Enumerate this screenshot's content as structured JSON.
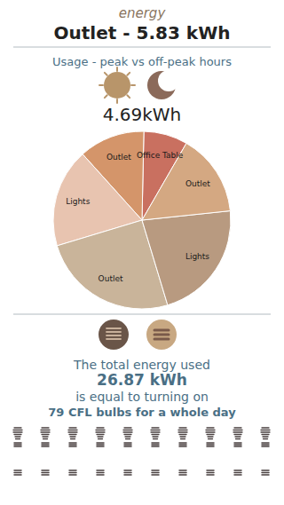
{
  "chart_data": {
    "type": "pie",
    "title": "Outlet - 5.83 kWh",
    "annotations": [
      "energy",
      "Usage - peak vs off-peak hours",
      "4.69kWh",
      "The total energy used",
      "26.87 kWh",
      "is equal to turning on",
      "79 CFL bulbs for a whole day"
    ],
    "categories": [
      "Office Table",
      "Outlet",
      "Lights",
      "Outlet",
      "Lights",
      "Outlet"
    ],
    "values": [
      8,
      12,
      18,
      25,
      22,
      15
    ],
    "colors": [
      "#c97060",
      "#d4956a",
      "#e8c4b0",
      "#c9b49a",
      "#b89a80",
      "#d4a882"
    ]
  }
}
